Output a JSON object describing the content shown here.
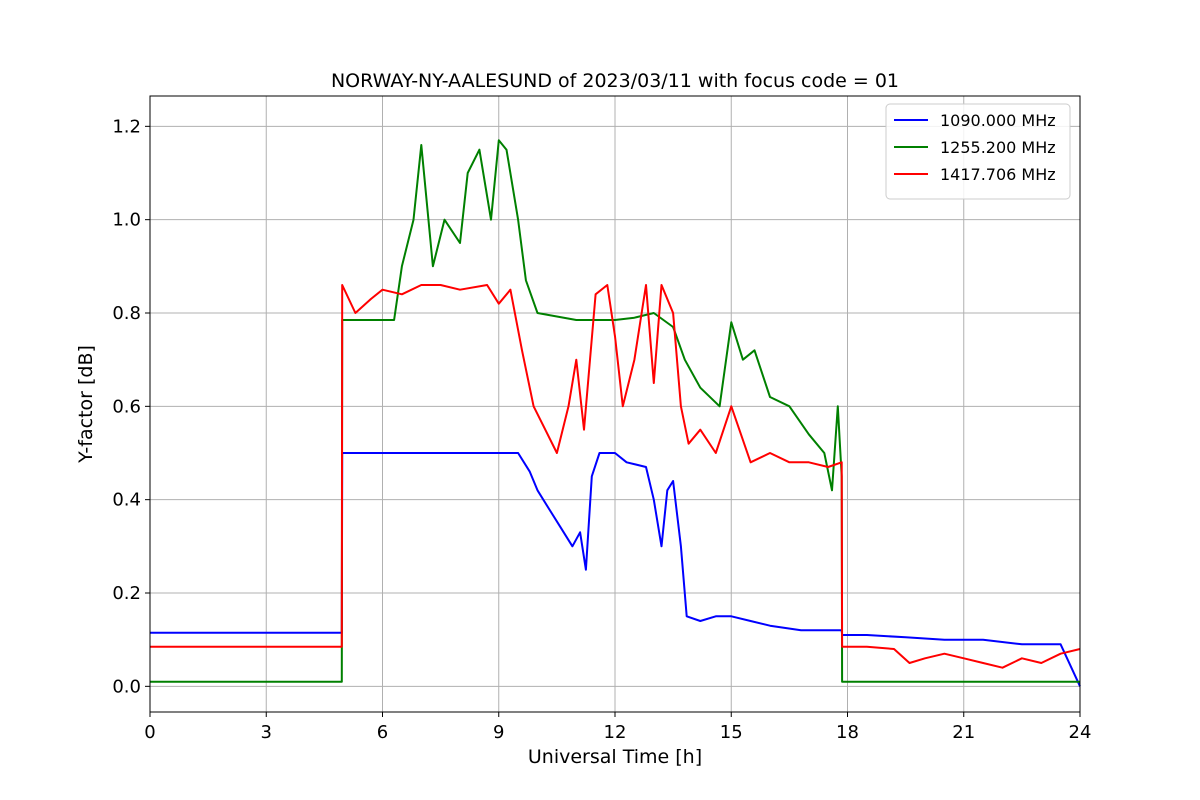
{
  "chart_data": {
    "type": "line",
    "title": "NORWAY-NY-AALESUND of 2023/03/11 with focus code = 01",
    "xlabel": "Universal Time [h]",
    "ylabel": "Y-factor [dB]",
    "xlim": [
      0,
      24
    ],
    "ylim": [
      -0.055,
      1.265
    ],
    "xticks": [
      0,
      3,
      6,
      9,
      12,
      15,
      18,
      21,
      24
    ],
    "xtick_labels": [
      "0",
      "3",
      "6",
      "9",
      "12",
      "15",
      "18",
      "21",
      "24"
    ],
    "yticks": [
      0.0,
      0.2,
      0.4,
      0.6,
      0.8,
      1.0,
      1.2
    ],
    "ytick_labels": [
      "0.0",
      "0.2",
      "0.4",
      "0.6",
      "0.8",
      "1.0",
      "1.2"
    ],
    "grid": true,
    "legend_position": "top-right",
    "series": [
      {
        "name": "1090.000 MHz",
        "color": "#0000ff",
        "x": [
          0,
          4.95,
          4.96,
          9.5,
          9.8,
          10.0,
          10.3,
          10.6,
          10.9,
          11.1,
          11.25,
          11.4,
          11.6,
          12.0,
          12.3,
          12.8,
          13.0,
          13.2,
          13.35,
          13.5,
          13.7,
          13.85,
          14.2,
          14.6,
          15.0,
          15.5,
          16.0,
          16.8,
          17.5,
          17.85,
          17.86,
          18.5,
          19.5,
          20.5,
          21.5,
          22.5,
          23.5,
          24.0
        ],
        "y": [
          0.115,
          0.115,
          0.5,
          0.5,
          0.46,
          0.42,
          0.38,
          0.34,
          0.3,
          0.33,
          0.25,
          0.45,
          0.5,
          0.5,
          0.48,
          0.47,
          0.4,
          0.3,
          0.42,
          0.44,
          0.3,
          0.15,
          0.14,
          0.15,
          0.15,
          0.14,
          0.13,
          0.12,
          0.12,
          0.12,
          0.11,
          0.11,
          0.105,
          0.1,
          0.1,
          0.09,
          0.09,
          0.0
        ]
      },
      {
        "name": "1255.200 MHz",
        "color": "#008000",
        "x": [
          0,
          4.95,
          4.96,
          6.3,
          6.5,
          6.8,
          7.0,
          7.3,
          7.6,
          8.0,
          8.2,
          8.5,
          8.8,
          9.0,
          9.2,
          9.5,
          9.7,
          10.0,
          11.0,
          12.0,
          12.5,
          13.0,
          13.5,
          13.8,
          14.2,
          14.7,
          15.0,
          15.3,
          15.6,
          16.0,
          16.5,
          17.0,
          17.4,
          17.6,
          17.75,
          17.85,
          17.86,
          18.5,
          20.0,
          22.0,
          24.0
        ],
        "y": [
          0.01,
          0.01,
          0.785,
          0.785,
          0.9,
          1.0,
          1.16,
          0.9,
          1.0,
          0.95,
          1.1,
          1.15,
          1.0,
          1.17,
          1.15,
          1.0,
          0.87,
          0.8,
          0.785,
          0.785,
          0.79,
          0.8,
          0.77,
          0.7,
          0.64,
          0.6,
          0.78,
          0.7,
          0.72,
          0.62,
          0.6,
          0.54,
          0.5,
          0.42,
          0.6,
          0.45,
          0.01,
          0.01,
          0.01,
          0.01,
          0.01
        ]
      },
      {
        "name": "1417.706 MHz",
        "color": "#ff0000",
        "x": [
          0,
          4.95,
          4.96,
          5.3,
          5.7,
          6.0,
          6.5,
          7.0,
          7.5,
          8.0,
          8.7,
          9.0,
          9.3,
          9.6,
          9.9,
          10.2,
          10.5,
          10.8,
          11.0,
          11.2,
          11.5,
          11.8,
          12.0,
          12.2,
          12.5,
          12.8,
          13.0,
          13.2,
          13.5,
          13.7,
          13.9,
          14.2,
          14.6,
          15.0,
          15.5,
          16.0,
          16.5,
          17.0,
          17.5,
          17.85,
          17.86,
          18.5,
          19.2,
          19.6,
          20.0,
          20.5,
          21.0,
          21.5,
          22.0,
          22.5,
          23.0,
          23.5,
          24.0
        ],
        "y": [
          0.085,
          0.085,
          0.86,
          0.8,
          0.83,
          0.85,
          0.84,
          0.86,
          0.86,
          0.85,
          0.86,
          0.82,
          0.85,
          0.72,
          0.6,
          0.55,
          0.5,
          0.6,
          0.7,
          0.55,
          0.84,
          0.86,
          0.75,
          0.6,
          0.7,
          0.86,
          0.65,
          0.86,
          0.8,
          0.6,
          0.52,
          0.55,
          0.5,
          0.6,
          0.48,
          0.5,
          0.48,
          0.48,
          0.47,
          0.48,
          0.085,
          0.085,
          0.08,
          0.05,
          0.06,
          0.07,
          0.06,
          0.05,
          0.04,
          0.06,
          0.05,
          0.07,
          0.08
        ]
      }
    ]
  }
}
